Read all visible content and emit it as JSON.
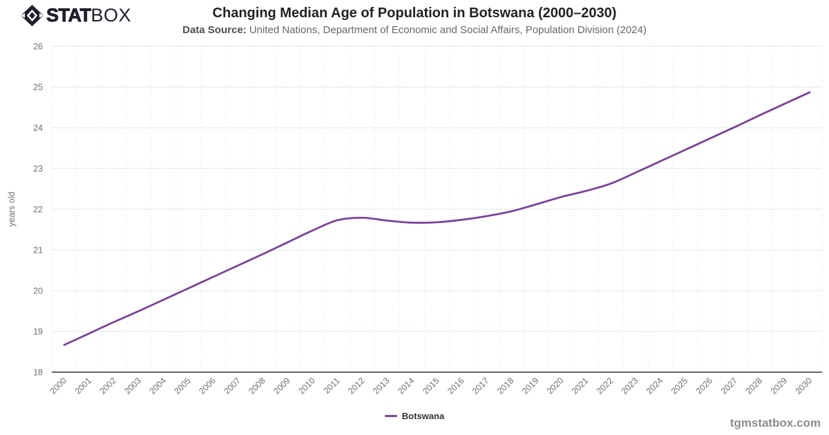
{
  "header": {
    "logo_stat": "STAT",
    "logo_box": "BOX",
    "title": "Changing Median Age of Population in Botswana (2000–2030)",
    "subtitle_label": "Data Source:",
    "subtitle_text": " United Nations, Department of Economic and Social Affairs, Population Division (2024)"
  },
  "chart_data": {
    "type": "line",
    "title": "Changing Median Age of Population in Botswana (2000–2030)",
    "subtitle": "Data Source: United Nations, Department of Economic and Social Affairs, Population Division (2024)",
    "xlabel": "",
    "ylabel": "years old",
    "ylim": [
      18,
      26
    ],
    "ytick_step": 1,
    "yticks": [
      18,
      19,
      20,
      21,
      22,
      23,
      24,
      25,
      26
    ],
    "grid": true,
    "x_label_rotation": 45,
    "legend_position": "bottom-center",
    "categories": [
      "2000",
      "2001",
      "2002",
      "2003",
      "2004",
      "2005",
      "2006",
      "2007",
      "2008",
      "2009",
      "2010",
      "2011",
      "2012",
      "2013",
      "2014",
      "2015",
      "2016",
      "2017",
      "2018",
      "2019",
      "2020",
      "2021",
      "2022",
      "2023",
      "2024",
      "2025",
      "2026",
      "2027",
      "2028",
      "2029",
      "2030"
    ],
    "series": [
      {
        "name": "Botswana",
        "color": "#7B429B",
        "values": [
          18.67,
          18.95,
          19.23,
          19.5,
          19.78,
          20.06,
          20.34,
          20.62,
          20.9,
          21.19,
          21.48,
          21.73,
          21.79,
          21.72,
          21.67,
          21.68,
          21.74,
          21.83,
          21.95,
          22.12,
          22.3,
          22.45,
          22.63,
          22.9,
          23.18,
          23.46,
          23.74,
          24.02,
          24.31,
          24.59,
          24.87
        ]
      }
    ]
  },
  "legend": {
    "items": [
      {
        "label": "Botswana",
        "color": "#7B429B"
      }
    ]
  },
  "watermark": "tgmstatbox.com",
  "colors": {
    "line": "#7B429B",
    "grid": "#E0E6F1",
    "axis_line": "#333333",
    "tick_label": "#6E7079",
    "axis_name": "#6E7079",
    "title": "#222222",
    "subtitle": "#666666",
    "watermark": "#8C8C8C",
    "logo": "#1E1E2C"
  }
}
